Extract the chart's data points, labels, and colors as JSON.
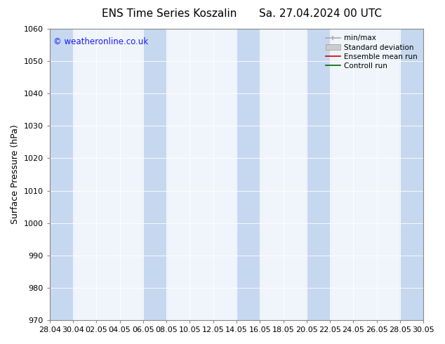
{
  "title1": "ENS Time Series Koszalin",
  "title2": "Sa. 27.04.2024 00 UTC",
  "ylabel": "Surface Pressure (hPa)",
  "ylim": [
    970,
    1060
  ],
  "yticks": [
    970,
    980,
    990,
    1000,
    1010,
    1020,
    1030,
    1040,
    1050,
    1060
  ],
  "x_tick_labels": [
    "28.04",
    "30.04",
    "02.05",
    "04.05",
    "06.05",
    "08.05",
    "10.05",
    "12.05",
    "14.05",
    "16.05",
    "18.05",
    "20.05",
    "22.05",
    "24.05",
    "26.05",
    "28.05",
    "30.05"
  ],
  "watermark": "© weatheronline.co.uk",
  "watermark_color": "#1a1aff",
  "bg_color": "#ffffff",
  "plot_bg_color": "#f0f5fb",
  "band_color": "#c5d8ef",
  "legend_labels": [
    "min/max",
    "Standard deviation",
    "Ensemble mean run",
    "Controll run"
  ],
  "legend_colors": [
    "#aaaaaa",
    "#cccccc",
    "#cc0000",
    "#006600"
  ],
  "figsize": [
    6.34,
    4.9
  ],
  "dpi": 100,
  "title_fontsize": 11,
  "ylabel_fontsize": 9,
  "tick_fontsize": 8
}
